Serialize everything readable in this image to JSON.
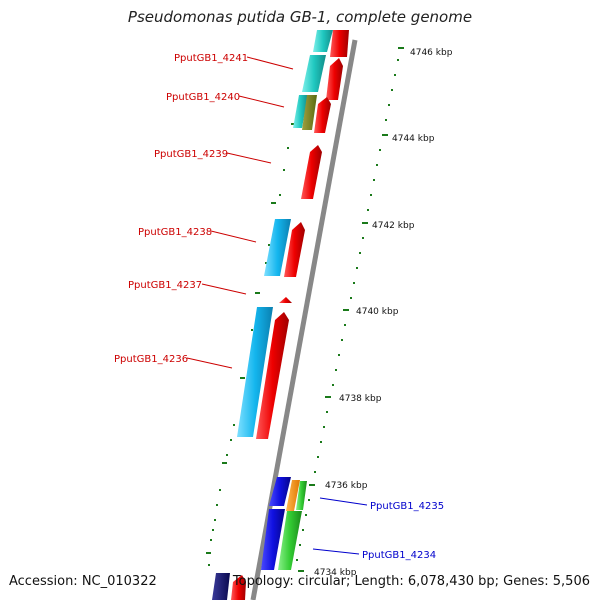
{
  "title": "Pseudomonas putida GB-1, complete genome",
  "accession": "Accession: NC_010322",
  "topology": "Topology: circular; Length: 6,078,430 bp; Genes: 5,506",
  "ticks": [
    "4746 kbp",
    "4744 kbp",
    "4742 kbp",
    "4740 kbp",
    "4738 kbp",
    "4736 kbp",
    "4734 kbp"
  ],
  "gene_labels": [
    {
      "name": "PputGB1_4241",
      "strand": "minus"
    },
    {
      "name": "PputGB1_4240",
      "strand": "minus"
    },
    {
      "name": "PputGB1_4239",
      "strand": "minus"
    },
    {
      "name": "PputGB1_4238",
      "strand": "minus"
    },
    {
      "name": "PputGB1_4237",
      "strand": "minus"
    },
    {
      "name": "PputGB1_4236",
      "strand": "minus"
    },
    {
      "name": "PputGB1_4235",
      "strand": "plus"
    },
    {
      "name": "PputGB1_4234",
      "strand": "plus"
    }
  ],
  "colors": {
    "minus_label": "#cc0000",
    "plus_label": "#0000cc",
    "backbone": "#888888",
    "tick": "#1a7a1a"
  }
}
